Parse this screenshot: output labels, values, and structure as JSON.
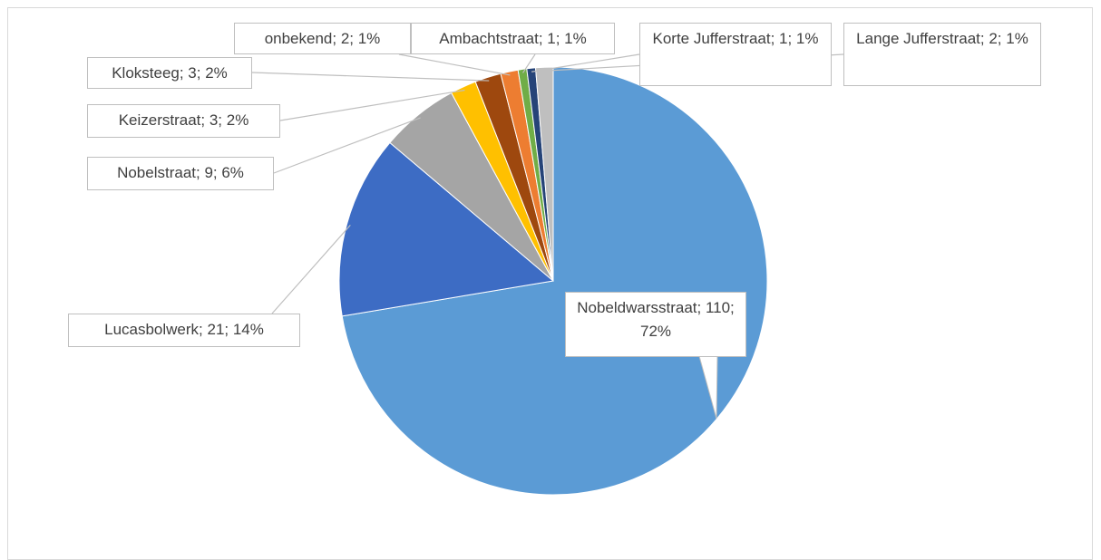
{
  "chart_data": {
    "type": "pie",
    "values": [
      110,
      21,
      9,
      3,
      3,
      2,
      1,
      1,
      2
    ],
    "value_labels": [
      "Nobeldwarsstraat; 110; 72%",
      "Lucasbolwerk; 21; 14%",
      "Nobelstraat; 9; 6%",
      "Keizerstraat; 3; 2%",
      "Kloksteeg; 3; 2%",
      "onbekend; 2; 1%",
      "Ambachtstraat; 1; 1%",
      "Korte Jufferstraat; 1; 1%",
      "Lange Jufferstraat; 2; 1%"
    ],
    "colors": [
      "#5b9bd5",
      "#3d6cc4",
      "#a5a5a5",
      "#ffc000",
      "#9e480e",
      "#ed7d31",
      "#70ad47",
      "#264478",
      "#bfbfbf"
    ]
  }
}
